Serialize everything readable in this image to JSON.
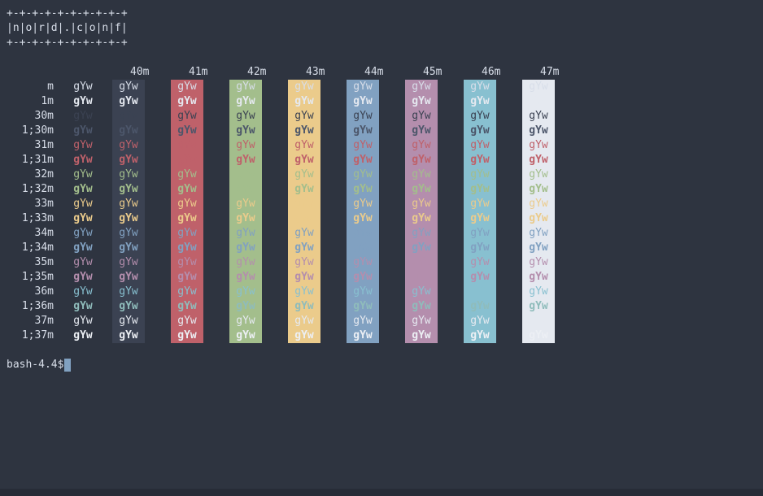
{
  "colors": {
    "background": "#2e3440",
    "foreground": "#d8dee9",
    "cursor": "#81a1c1",
    "bottom_bar": "#272c37"
  },
  "banner": {
    "lines": [
      "+-+-+-+-+-+-+-+-+-+",
      "|n|o|r|d|.|c|o|n|f|",
      "+-+-+-+-+-+-+-+-+-+"
    ]
  },
  "color_test": {
    "cell_text": "gYw",
    "columns": [
      {
        "header": "40m",
        "bg": "#3b4252"
      },
      {
        "header": "41m",
        "bg": "#bf616a"
      },
      {
        "header": "42m",
        "bg": "#a3be8c"
      },
      {
        "header": "43m",
        "bg": "#ebcb8b"
      },
      {
        "header": "44m",
        "bg": "#81a1c1"
      },
      {
        "header": "45m",
        "bg": "#b48ead"
      },
      {
        "header": "46m",
        "bg": "#88c0d0"
      },
      {
        "header": "47m",
        "bg": "#e5e9f0"
      }
    ],
    "rows": [
      {
        "label": "m",
        "fg": "#d8dee9",
        "bold": false
      },
      {
        "label": "1m",
        "fg": "#e5e9f0",
        "bold": true
      },
      {
        "label": "30m",
        "fg": "#3b4252",
        "bold": false
      },
      {
        "label": "1;30m",
        "fg": "#4c566a",
        "bold": true
      },
      {
        "label": "31m",
        "fg": "#bf616a",
        "bold": false
      },
      {
        "label": "1;31m",
        "fg": "#bf616a",
        "bold": true
      },
      {
        "label": "32m",
        "fg": "#a3be8c",
        "bold": false
      },
      {
        "label": "1;32m",
        "fg": "#a3be8c",
        "bold": true
      },
      {
        "label": "33m",
        "fg": "#ebcb8b",
        "bold": false
      },
      {
        "label": "1;33m",
        "fg": "#ebcb8b",
        "bold": true
      },
      {
        "label": "34m",
        "fg": "#81a1c1",
        "bold": false
      },
      {
        "label": "1;34m",
        "fg": "#81a1c1",
        "bold": true
      },
      {
        "label": "35m",
        "fg": "#b48ead",
        "bold": false
      },
      {
        "label": "1;35m",
        "fg": "#b48ead",
        "bold": true
      },
      {
        "label": "36m",
        "fg": "#88c0d0",
        "bold": false
      },
      {
        "label": "1;36m",
        "fg": "#8fbcbb",
        "bold": true
      },
      {
        "label": "37m",
        "fg": "#e5e9f0",
        "bold": false
      },
      {
        "label": "1;37m",
        "fg": "#eceff4",
        "bold": true
      }
    ]
  },
  "prompt": {
    "text": "bash-4.4$"
  }
}
